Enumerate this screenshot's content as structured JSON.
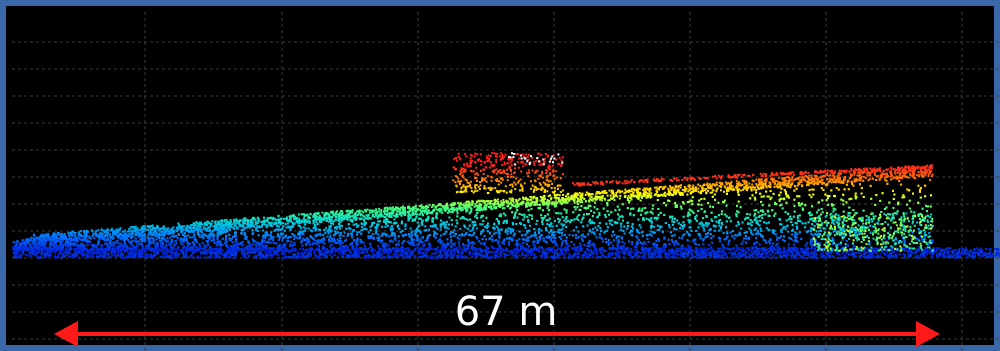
{
  "scale_bar": {
    "label": "67 m",
    "color": "#ff1a1a"
  },
  "colors": {
    "background": "#000000",
    "frame": "#3a67a8",
    "grid": "#3c3c3c",
    "colormap": [
      "#0010d0",
      "#0070ff",
      "#00d0e0",
      "#40ff80",
      "#ffff00",
      "#ff8000",
      "#ff2020"
    ]
  }
}
